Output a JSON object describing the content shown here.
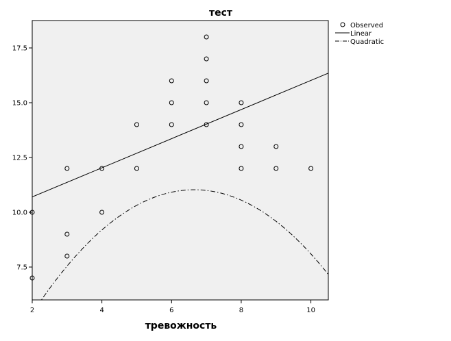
{
  "chart_data": {
    "type": "scatter",
    "title": "тест",
    "xlabel": "тревожность",
    "ylabel": "",
    "xlim": [
      2,
      10.5
    ],
    "ylim": [
      6,
      18.75
    ],
    "xticks": [
      2,
      4,
      6,
      8,
      10
    ],
    "xtick_labels": [
      "2",
      "4",
      "6",
      "8",
      "10"
    ],
    "yticks": [
      7.5,
      10.0,
      12.5,
      15.0,
      17.5
    ],
    "ytick_labels": [
      "7.5",
      "10.0",
      "12.5",
      "15.0",
      "17.5"
    ],
    "grid": false,
    "legend_position": "top-right outside",
    "series": [
      {
        "name": "Observed",
        "kind": "scatter",
        "points": [
          [
            2,
            7
          ],
          [
            2,
            10
          ],
          [
            3,
            8
          ],
          [
            3,
            9
          ],
          [
            3,
            12
          ],
          [
            4,
            10
          ],
          [
            4,
            12
          ],
          [
            5,
            12
          ],
          [
            5,
            14
          ],
          [
            6,
            14
          ],
          [
            6,
            15
          ],
          [
            6,
            16
          ],
          [
            7,
            14
          ],
          [
            7,
            15
          ],
          [
            7,
            16
          ],
          [
            7,
            17
          ],
          [
            7,
            18
          ],
          [
            8,
            12
          ],
          [
            8,
            13
          ],
          [
            8,
            14
          ],
          [
            8,
            15
          ],
          [
            9,
            12
          ],
          [
            9,
            13
          ],
          [
            10,
            12
          ]
        ]
      },
      {
        "name": "Linear",
        "kind": "line",
        "style": "solid",
        "endpoints": [
          [
            2,
            10.7
          ],
          [
            10.5,
            16.35
          ]
        ]
      },
      {
        "name": "Quadratic",
        "kind": "curve",
        "style": "dash-dot",
        "coefficients": {
          "a": -0.2612,
          "b": 3.475,
          "c": -0.5297
        }
      }
    ]
  }
}
